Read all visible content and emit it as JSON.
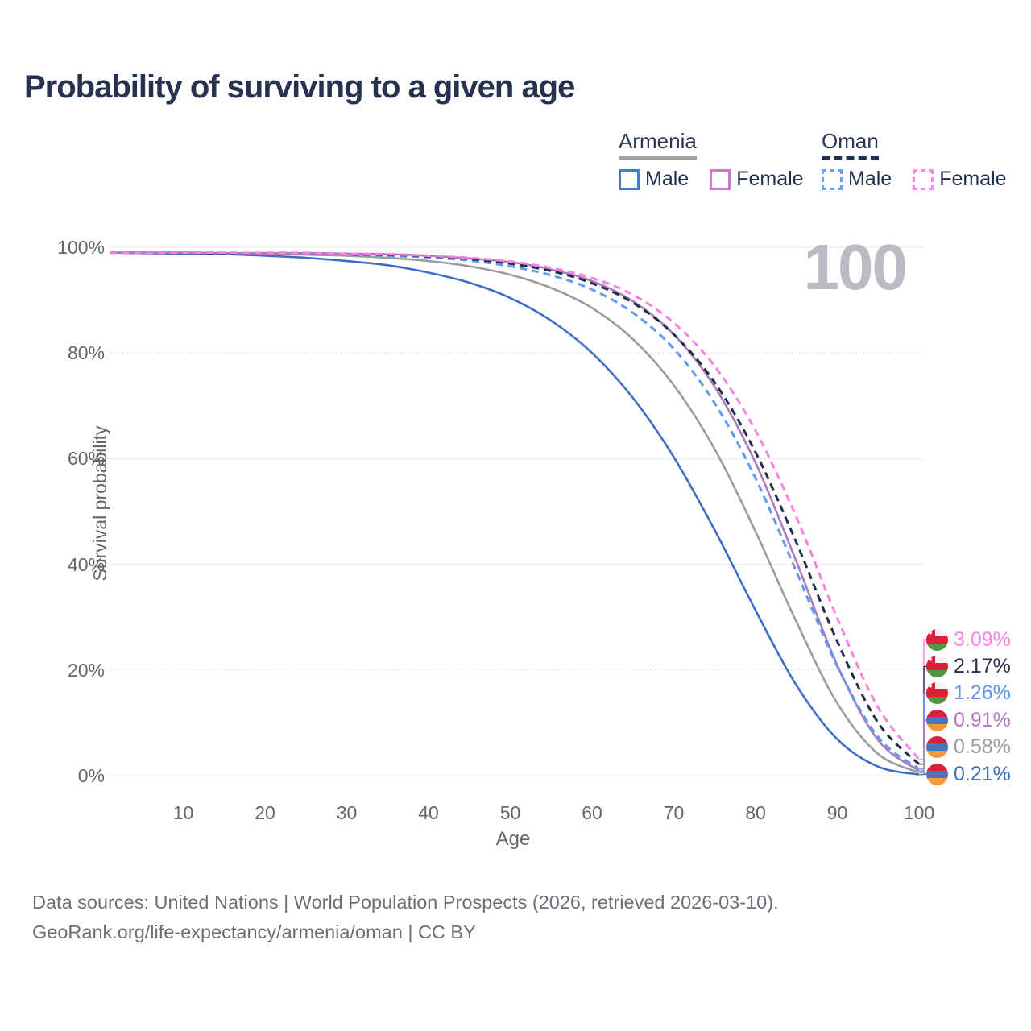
{
  "title": "Probability of surviving to a given age",
  "watermark": "100",
  "legend": {
    "groups": [
      {
        "country": "Armenia",
        "line_style": "solid",
        "underline_color": "#a3a3a3",
        "items": [
          {
            "label": "Male",
            "color": "#4a79c7",
            "dashed": false
          },
          {
            "label": "Female",
            "color": "#c67fc6",
            "dashed": false
          }
        ]
      },
      {
        "country": "Oman",
        "line_style": "dashed",
        "underline_color": "#22304e",
        "items": [
          {
            "label": "Male",
            "color": "#6aa2f2",
            "dashed": true
          },
          {
            "label": "Female",
            "color": "#fb8ae6",
            "dashed": true
          }
        ]
      }
    ]
  },
  "axes": {
    "y_label": "Survival probability",
    "x_label": "Age",
    "y_ticks": [
      {
        "label": "100%",
        "value": 100,
        "style": "solid"
      },
      {
        "label": "80%",
        "value": 80,
        "style": "dotted"
      },
      {
        "label": "60%",
        "value": 60,
        "style": "solid"
      },
      {
        "label": "40%",
        "value": 40,
        "style": "solid"
      },
      {
        "label": "20%",
        "value": 20,
        "style": "dotted"
      },
      {
        "label": "0%",
        "value": 0,
        "style": "solid"
      }
    ],
    "x_ticks": [
      {
        "label": "10",
        "value": 10
      },
      {
        "label": "20",
        "value": 20
      },
      {
        "label": "30",
        "value": 30
      },
      {
        "label": "40",
        "value": 40
      },
      {
        "label": "50",
        "value": 50
      },
      {
        "label": "60",
        "value": 60
      },
      {
        "label": "70",
        "value": 70
      },
      {
        "label": "80",
        "value": 80
      },
      {
        "label": "90",
        "value": 90
      },
      {
        "label": "100",
        "value": 100
      }
    ]
  },
  "chart_data": {
    "type": "line",
    "title": "Probability of surviving to a given age",
    "xlabel": "Age",
    "ylabel": "Survival probability",
    "xlim": [
      0,
      100
    ],
    "ylim": [
      0,
      100
    ],
    "grid": "horizontal",
    "x": [
      0,
      5,
      10,
      15,
      20,
      25,
      30,
      35,
      40,
      45,
      50,
      55,
      60,
      65,
      70,
      75,
      80,
      85,
      90,
      95,
      100
    ],
    "series": [
      {
        "name": "Armenia — Both sexes",
        "country": "Armenia",
        "sex": "Both",
        "color": "#9c9c9e",
        "dash": false,
        "values": [
          99.0,
          99.0,
          98.9,
          98.9,
          98.8,
          98.6,
          98.4,
          98.0,
          97.4,
          96.4,
          94.8,
          92.3,
          88.5,
          82.6,
          73.9,
          61.8,
          46.2,
          29.1,
          13.7,
          4.1,
          0.58
        ]
      },
      {
        "name": "Armenia — Male",
        "country": "Armenia",
        "sex": "Male",
        "color": "#3e6dc5",
        "dash": false,
        "values": [
          99.0,
          98.9,
          98.8,
          98.7,
          98.4,
          98.0,
          97.4,
          96.6,
          95.2,
          93.3,
          90.4,
          86.1,
          80.0,
          71.5,
          60.3,
          46.5,
          31.3,
          17.1,
          6.9,
          1.7,
          0.21
        ]
      },
      {
        "name": "Armenia — Female",
        "country": "Armenia",
        "sex": "Female",
        "color": "#ab7cba",
        "dash": false,
        "values": [
          99.0,
          99.0,
          99.0,
          98.9,
          98.9,
          98.9,
          98.8,
          98.7,
          98.4,
          97.9,
          97.2,
          95.8,
          93.6,
          89.8,
          83.5,
          73.6,
          59.2,
          40.5,
          20.9,
          6.7,
          0.91
        ]
      },
      {
        "name": "Oman — Male",
        "country": "Oman",
        "sex": "Male",
        "color": "#5e9cf1",
        "dash": true,
        "values": [
          99.0,
          99.0,
          99.0,
          98.9,
          98.9,
          98.8,
          98.7,
          98.4,
          98.1,
          97.5,
          96.4,
          94.7,
          92.0,
          87.6,
          80.8,
          70.5,
          56.3,
          38.6,
          20.7,
          7.3,
          1.26
        ]
      },
      {
        "name": "Oman — Both sexes",
        "country": "Oman",
        "sex": "Both",
        "color": "#202d4f",
        "dash": true,
        "values": [
          99.0,
          99.0,
          99.0,
          98.9,
          98.9,
          98.9,
          98.7,
          98.6,
          98.3,
          97.8,
          96.9,
          95.5,
          93.2,
          89.5,
          83.5,
          74.4,
          61.2,
          44.1,
          25.4,
          10.0,
          2.17
        ]
      },
      {
        "name": "Oman — Female",
        "country": "Oman",
        "sex": "Female",
        "color": "#fb80e3",
        "dash": true,
        "values": [
          99.0,
          99.0,
          99.0,
          99.0,
          98.9,
          98.9,
          98.8,
          98.7,
          98.4,
          98.0,
          97.3,
          96.1,
          94.2,
          91.0,
          85.7,
          77.5,
          65.3,
          48.9,
          29.8,
          12.9,
          3.09
        ]
      }
    ],
    "end_labels": [
      {
        "text": "3.09%",
        "value": 3.09,
        "flag": "oman",
        "series": "Oman — Female",
        "color": "#fb80e3"
      },
      {
        "text": "2.17%",
        "value": 2.17,
        "flag": "oman",
        "series": "Oman — Both sexes",
        "color": "#26304b"
      },
      {
        "text": "1.26%",
        "value": 1.26,
        "flag": "oman",
        "series": "Oman — Male",
        "color": "#5795ee"
      },
      {
        "text": "0.91%",
        "value": 0.91,
        "flag": "armenia",
        "series": "Armenia — Female",
        "color": "#b873c8"
      },
      {
        "text": "0.58%",
        "value": 0.58,
        "flag": "armenia",
        "series": "Armenia — Both sexes",
        "color": "#9c9ca3"
      },
      {
        "text": "0.21%",
        "value": 0.21,
        "flag": "armenia",
        "series": "Armenia — Male",
        "color": "#3e6dc5"
      }
    ],
    "flag_colors": {
      "armenia": {
        "red": "#d6213a",
        "blue": "#4a77bb",
        "orange": "#f49a3b"
      },
      "oman": {
        "red": "#dc1f36",
        "green": "#4f9646",
        "white": "#f4f4f4"
      }
    },
    "legend_position": "top-right"
  },
  "footer": {
    "line1": "Data sources: United Nations | World Population Prospects (2026, retrieved 2026-03-10).",
    "line2": "GeoRank.org/life-expectancy/armenia/oman | CC BY"
  }
}
